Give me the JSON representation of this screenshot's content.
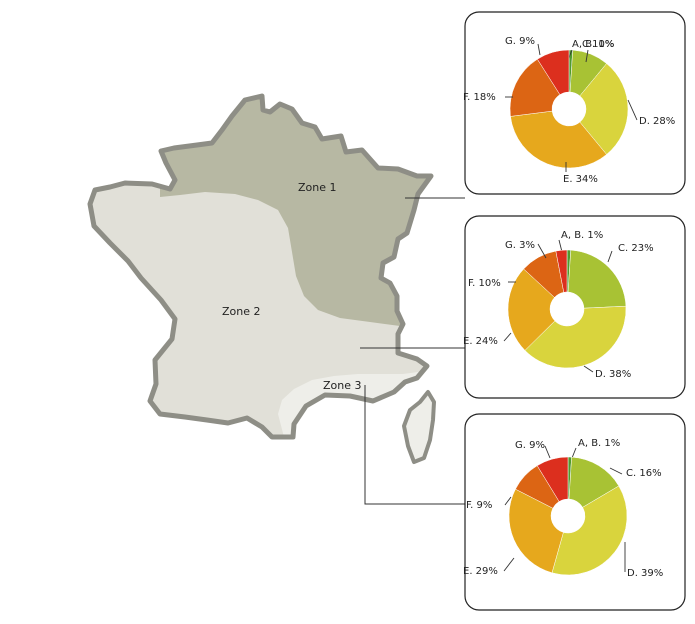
{
  "colors": {
    "A, B.": "#4f9a2f",
    "C.": "#a8c234",
    "D.": "#d9d43d",
    "E.": "#e6a81d",
    "F.": "#dc6514",
    "G.": "#dc2f1e",
    "zone1": "#b7b8a3",
    "zone2": "#e1e0d8",
    "zone3": "#eeeee9",
    "border": "#8e8e86"
  },
  "map": {
    "zones": [
      {
        "key": "zone1",
        "label": "Zone 1"
      },
      {
        "key": "zone2",
        "label": "Zone 2"
      },
      {
        "key": "zone3",
        "label": "Zone 3"
      }
    ]
  },
  "chart_data": [
    {
      "type": "pie",
      "zone": "Zone 1",
      "slices": [
        {
          "key": "A, B.",
          "label": "A, B. 1%",
          "value": 1
        },
        {
          "key": "C.",
          "label": "C 10%",
          "value": 10
        },
        {
          "key": "D.",
          "label": "D. 28%",
          "value": 28
        },
        {
          "key": "E.",
          "label": "E. 34%",
          "value": 34
        },
        {
          "key": "F.",
          "label": "F. 18%",
          "value": 18
        },
        {
          "key": "G.",
          "label": "G. 9%",
          "value": 9
        }
      ]
    },
    {
      "type": "pie",
      "zone": "Zone 2",
      "slices": [
        {
          "key": "A, B.",
          "label": "A, B. 1%",
          "value": 1
        },
        {
          "key": "C.",
          "label": "C. 23%",
          "value": 23
        },
        {
          "key": "D.",
          "label": "D. 38%",
          "value": 38
        },
        {
          "key": "E.",
          "label": "E. 24%",
          "value": 24
        },
        {
          "key": "F.",
          "label": "F. 10%",
          "value": 10
        },
        {
          "key": "G.",
          "label": "G. 3%",
          "value": 3
        }
      ]
    },
    {
      "type": "pie",
      "zone": "Zone 3",
      "slices": [
        {
          "key": "A, B.",
          "label": "A, B. 1%",
          "value": 1
        },
        {
          "key": "C.",
          "label": "C. 16%",
          "value": 16
        },
        {
          "key": "D.",
          "label": "D. 39%",
          "value": 39
        },
        {
          "key": "E.",
          "label": "E. 29%",
          "value": 29
        },
        {
          "key": "F.",
          "label": "F. 9%",
          "value": 9
        },
        {
          "key": "G.",
          "label": "G. 9%",
          "value": 9
        }
      ]
    }
  ]
}
